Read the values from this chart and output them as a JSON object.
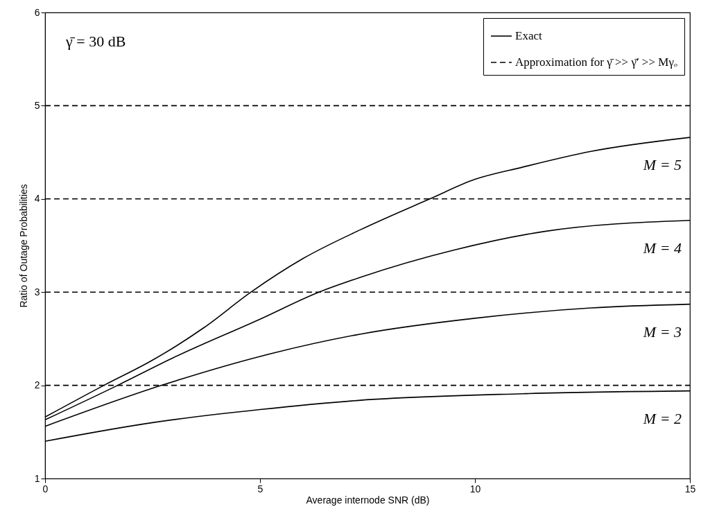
{
  "chart_data": {
    "type": "line",
    "xlabel": "Average internode SNR (dB)",
    "ylabel": "Ratio of Outage Probabilities",
    "xlim": [
      0,
      15
    ],
    "ylim": [
      1,
      6
    ],
    "xticks": [
      0,
      5,
      10,
      15
    ],
    "yticks": [
      1,
      2,
      3,
      4,
      5,
      6
    ],
    "grid": false,
    "legend": "top right",
    "series": [
      {
        "name": "Exact",
        "color": "#000000",
        "line_style": "solid",
        "x": [
          0,
          1.37,
          2.5,
          3.7,
          4.79,
          6,
          7.34,
          8.95,
          10,
          11.1,
          12.7,
          15
        ],
        "values": [
          1.66,
          2.0,
          2.27,
          2.62,
          3.0,
          3.36,
          3.67,
          4.0,
          4.21,
          4.34,
          4.51,
          4.66
        ]
      },
      {
        "color": "#000000",
        "line_style": "solid",
        "x": [
          0,
          1.69,
          3,
          5,
          6.37,
          7.34,
          9.5,
          11.6,
          15
        ],
        "values": [
          1.63,
          2.0,
          2.3,
          2.71,
          3.0,
          3.16,
          3.45,
          3.65,
          3.77
        ]
      },
      {
        "color": "#000000",
        "line_style": "solid",
        "x": [
          0,
          2.71,
          5,
          7.34,
          10,
          12.7,
          15
        ],
        "values": [
          1.56,
          2.0,
          2.31,
          2.55,
          2.72,
          2.83,
          2.87
        ]
      },
      {
        "color": "#000000",
        "line_style": "solid",
        "x": [
          0,
          2.5,
          5,
          7.34,
          11.1,
          15
        ],
        "values": [
          1.4,
          1.6,
          1.74,
          1.84,
          1.91,
          1.94
        ]
      },
      {
        "name": "Approximation for γ̄ >> γ̄′ >> Mγₒ",
        "color": "#000000",
        "line_style": "dashed",
        "x": [
          0,
          15
        ],
        "values": [
          5,
          5
        ]
      },
      {
        "color": "#000000",
        "line_style": "dashed",
        "x": [
          0,
          15
        ],
        "values": [
          4,
          4
        ]
      },
      {
        "color": "#000000",
        "line_style": "dashed",
        "x": [
          0,
          15
        ],
        "values": [
          3,
          3
        ]
      },
      {
        "color": "#000000",
        "line_style": "dashed",
        "x": [
          0,
          15
        ],
        "values": [
          2,
          2
        ]
      }
    ],
    "annotations": [
      "γ̄ = 30 dB",
      "M = 5",
      "M = 4",
      "M = 3",
      "M = 2"
    ]
  }
}
